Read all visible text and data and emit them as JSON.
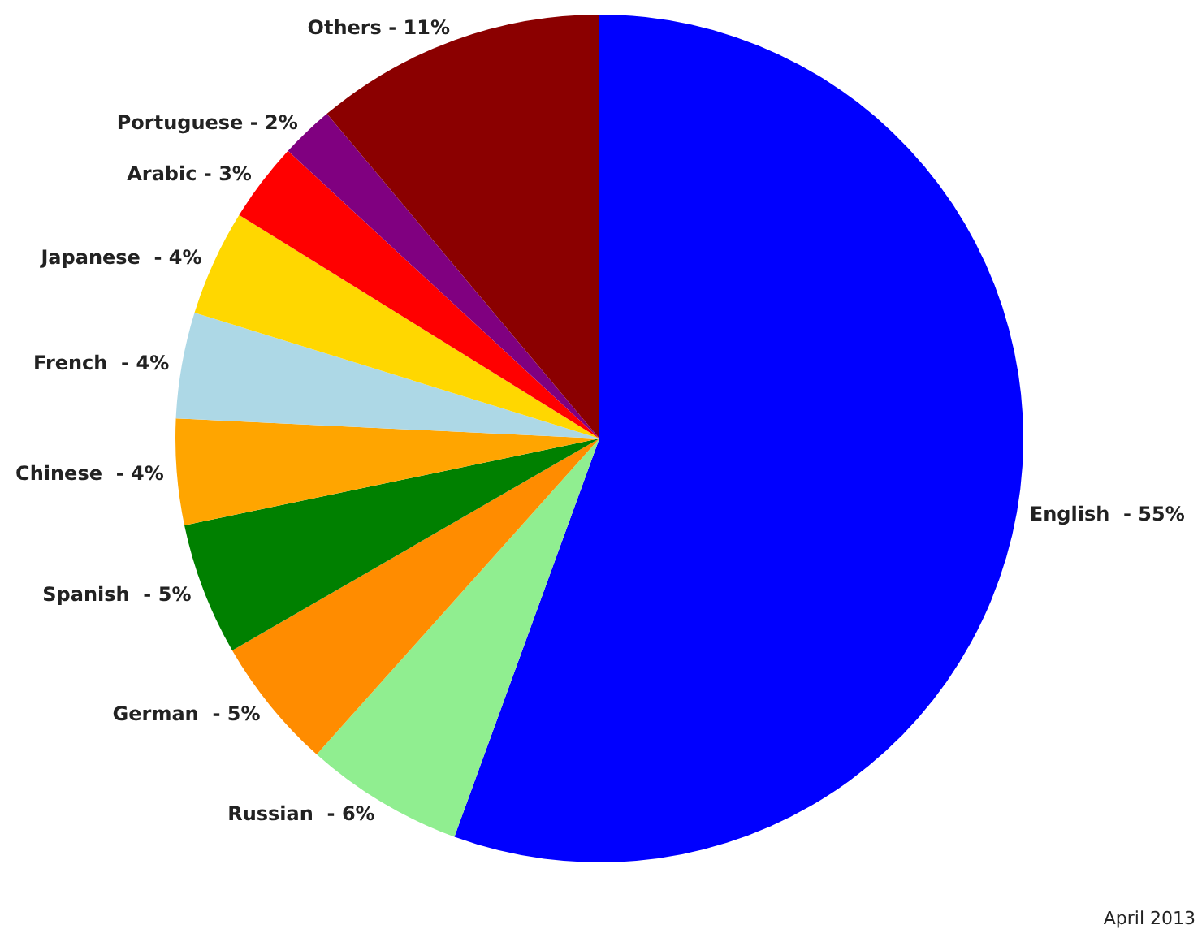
{
  "chart_data": {
    "type": "pie",
    "categories": [
      "English  - 55%",
      "Russian  - 6%",
      "German  - 5%",
      "Spanish  - 5%",
      "Chinese  - 4%",
      "French  - 4%",
      "Japanese  - 4%",
      "Arabic - 3%",
      "Portuguese - 2%",
      "Others - 11%"
    ],
    "values": [
      55,
      6,
      5,
      5,
      4,
      4,
      4,
      3,
      2,
      11
    ],
    "colors": [
      "#0000ff",
      "#90ee90",
      "#ff8c00",
      "#008000",
      "#ffa500",
      "#add8e6",
      "#ffd700",
      "#ff0000",
      "#800080",
      "#8b0000"
    ],
    "annotations": [
      "April 2013"
    ]
  }
}
